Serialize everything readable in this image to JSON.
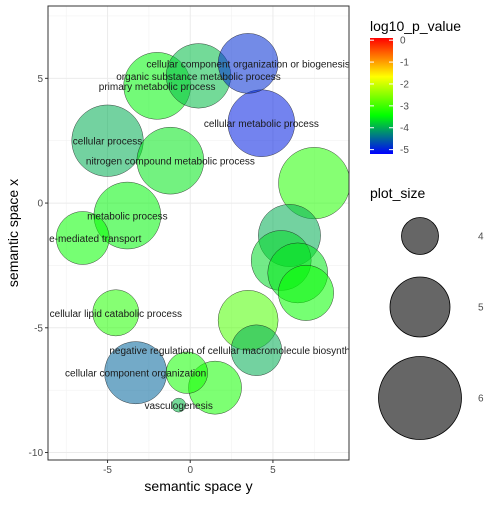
{
  "chart_data": {
    "type": "scatter",
    "title": "",
    "xlabel": "semantic space y",
    "ylabel": "semantic space x",
    "xlim": [
      -8.6,
      9.6
    ],
    "ylim": [
      -10.3,
      7.9
    ],
    "x_ticks": [
      -5,
      0,
      5
    ],
    "y_ticks": [
      -10,
      -5,
      0,
      5
    ],
    "grid": true,
    "legend_position": "right",
    "color_legend": {
      "title": "log10_p_value",
      "ticks": [
        0,
        -1,
        -2,
        -3,
        -4,
        -5
      ],
      "range": [
        -5.2,
        0.1
      ],
      "colors": [
        "#0000ff",
        "#00ff00",
        "#ffff00",
        "#ff0000"
      ]
    },
    "size_legend": {
      "title": "plot_size",
      "values": [
        4,
        5,
        6
      ]
    },
    "points": [
      {
        "label": "cellular component organization or biogenesis",
        "x": 3.5,
        "y": 5.6,
        "log10_p": -4.9,
        "size": 5.0
      },
      {
        "label": "organic substance metabolic process",
        "x": 0.5,
        "y": 5.1,
        "log10_p": -3.9,
        "size": 5.2
      },
      {
        "label": "primary metabolic process",
        "x": -2.0,
        "y": 4.7,
        "log10_p": -3.5,
        "size": 5.3
      },
      {
        "label": "cellular metabolic process",
        "x": 4.3,
        "y": 3.2,
        "log10_p": -5.0,
        "size": 5.3
      },
      {
        "label": "cellular process",
        "x": -5.0,
        "y": 2.5,
        "log10_p": -4.0,
        "size": 5.5
      },
      {
        "label": "nitrogen compound metabolic process",
        "x": -1.2,
        "y": 1.7,
        "log10_p": -3.6,
        "size": 5.3
      },
      {
        "label": "",
        "x": 7.5,
        "y": 0.8,
        "log10_p": -3.2,
        "size": 5.5
      },
      {
        "label": "metabolic process",
        "x": -3.8,
        "y": -0.5,
        "log10_p": -3.5,
        "size": 5.3
      },
      {
        "label": "vesicle-mediated transport",
        "x": -6.5,
        "y": -1.4,
        "log10_p": -3.4,
        "size": 4.7
      },
      {
        "label": "",
        "x": 6.0,
        "y": -1.3,
        "log10_p": -4.0,
        "size": 5.1
      },
      {
        "label": "",
        "x": 5.5,
        "y": -2.3,
        "log10_p": -3.7,
        "size": 5.0
      },
      {
        "label": "",
        "x": 6.5,
        "y": -2.8,
        "log10_p": -3.6,
        "size": 5.0
      },
      {
        "label": "",
        "x": 7.0,
        "y": -3.6,
        "log10_p": -3.4,
        "size": 4.8
      },
      {
        "label": "cellular lipid catabolic process",
        "x": -4.5,
        "y": -4.4,
        "log10_p": -3.2,
        "size": 4.4
      },
      {
        "label": "",
        "x": 3.5,
        "y": -4.7,
        "log10_p": -2.9,
        "size": 5.0
      },
      {
        "label": "negative regulation of cellular macromolecule biosynthetic process",
        "x": 4.0,
        "y": -5.9,
        "log10_p": -4.0,
        "size": 4.6
      },
      {
        "label": "cellular component organization",
        "x": -3.3,
        "y": -6.8,
        "log10_p": -4.5,
        "size": 5.1
      },
      {
        "label": "",
        "x": -0.2,
        "y": -6.8,
        "log10_p": -3.3,
        "size": 4.2
      },
      {
        "label": "",
        "x": 1.5,
        "y": -7.4,
        "log10_p": -3.3,
        "size": 4.7
      },
      {
        "label": "vasculogenesis",
        "x": -0.7,
        "y": -8.1,
        "log10_p": -3.9,
        "size": 3.0
      }
    ]
  }
}
